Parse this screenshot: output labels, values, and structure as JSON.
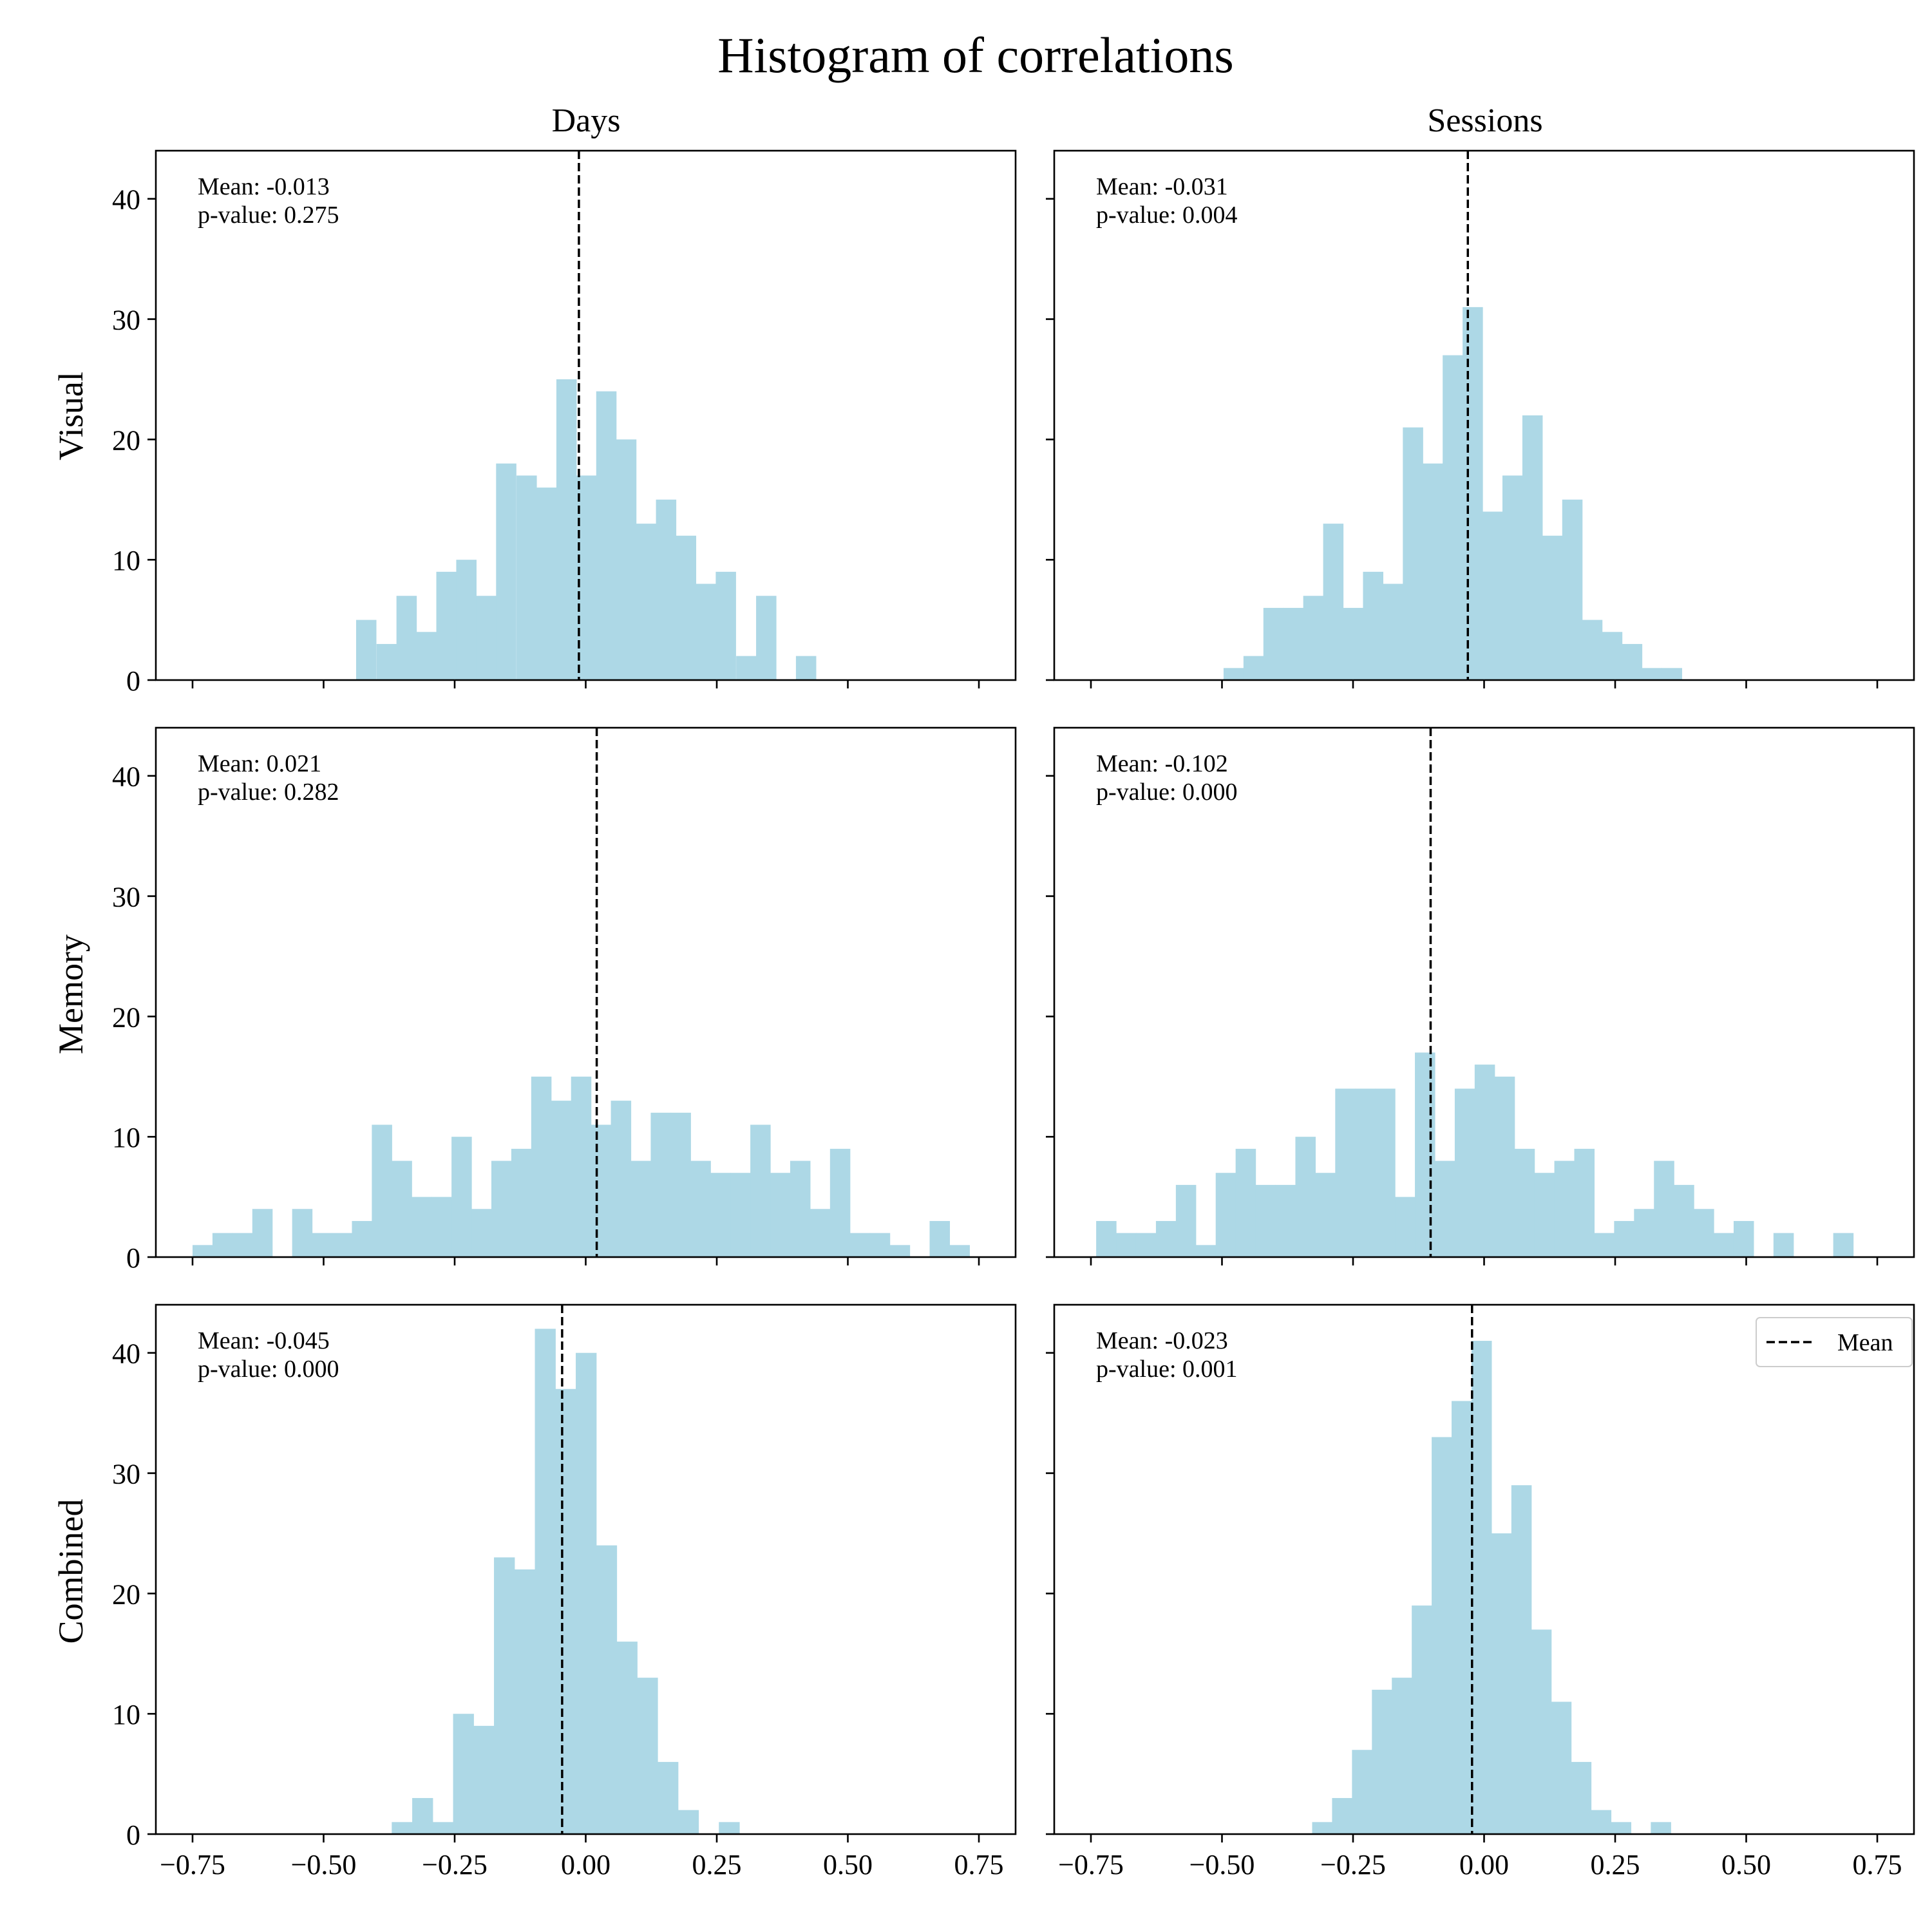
{
  "title": "Histogram of correlations",
  "column_titles": [
    "Days",
    "Sessions"
  ],
  "row_labels": [
    "Visual",
    "Memory",
    "Combined"
  ],
  "legend": {
    "label": "Mean",
    "location": "top-right",
    "panel": 5
  },
  "colors": {
    "bar": "#add8e6",
    "mean_line": "#000000",
    "axes": "#000000"
  },
  "chart_data": [
    {
      "type": "histogram",
      "row": "Visual",
      "column": "Days",
      "annotation": [
        "Mean: -0.013",
        "p-value: 0.275"
      ],
      "mean": -0.013,
      "bins": [
        [
          -0.438,
          5
        ],
        [
          -0.399,
          3
        ],
        [
          -0.361,
          7
        ],
        [
          -0.323,
          4
        ],
        [
          -0.285,
          9
        ],
        [
          -0.247,
          10
        ],
        [
          -0.209,
          7
        ],
        [
          -0.171,
          18
        ],
        [
          -0.132,
          17
        ],
        [
          -0.094,
          16
        ],
        [
          -0.056,
          25
        ],
        [
          -0.018,
          17
        ],
        [
          0.02,
          24
        ],
        [
          0.058,
          20
        ],
        [
          0.096,
          13
        ],
        [
          0.134,
          15
        ],
        [
          0.172,
          12
        ],
        [
          0.21,
          8
        ],
        [
          0.248,
          9
        ],
        [
          0.287,
          2
        ],
        [
          0.325,
          7
        ],
        [
          0.401,
          2
        ]
      ],
      "bin_width": 0.038,
      "xlim": [
        -0.82,
        0.82
      ],
      "ylim": [
        0,
        44
      ],
      "xticks": [
        "−0.75",
        "−0.50",
        "−0.25",
        "0.00",
        "0.25",
        "0.50",
        "0.75"
      ],
      "yticks": [
        "0",
        "10",
        "20",
        "30",
        "40"
      ],
      "show_xticklabels": false
    },
    {
      "type": "histogram",
      "row": "Visual",
      "column": "Sessions",
      "annotation": [
        "Mean: -0.031",
        "p-value: 0.004"
      ],
      "mean": -0.031,
      "bins": [
        [
          -0.497,
          1
        ],
        [
          -0.459,
          2
        ],
        [
          -0.421,
          6
        ],
        [
          -0.383,
          6
        ],
        [
          -0.345,
          7
        ],
        [
          -0.307,
          13
        ],
        [
          -0.269,
          6
        ],
        [
          -0.231,
          9
        ],
        [
          -0.193,
          8
        ],
        [
          -0.155,
          21
        ],
        [
          -0.117,
          18
        ],
        [
          -0.079,
          27
        ],
        [
          -0.041,
          31
        ],
        [
          -0.003,
          14
        ],
        [
          0.035,
          17
        ],
        [
          0.073,
          22
        ],
        [
          0.111,
          12
        ],
        [
          0.149,
          15
        ],
        [
          0.187,
          5
        ],
        [
          0.225,
          4
        ],
        [
          0.263,
          3
        ],
        [
          0.301,
          1
        ],
        [
          0.339,
          1
        ]
      ],
      "bin_width": 0.038,
      "xlim": [
        -0.82,
        0.82
      ],
      "ylim": [
        0,
        44
      ],
      "xticks": [
        "−0.75",
        "−0.50",
        "−0.25",
        "0.00",
        "0.25",
        "0.50",
        "0.75"
      ],
      "yticks": [
        "0",
        "10",
        "20",
        "30",
        "40"
      ],
      "show_xticklabels": false
    },
    {
      "type": "histogram",
      "row": "Memory",
      "column": "Days",
      "annotation": [
        "Mean: 0.021",
        "p-value: 0.282"
      ],
      "mean": 0.021,
      "bins": [
        [
          -0.75,
          1
        ],
        [
          -0.712,
          2
        ],
        [
          -0.674,
          2
        ],
        [
          -0.636,
          4
        ],
        [
          -0.56,
          4
        ],
        [
          -0.522,
          2
        ],
        [
          -0.484,
          2
        ],
        [
          -0.446,
          3
        ],
        [
          -0.408,
          11
        ],
        [
          -0.37,
          8
        ],
        [
          -0.332,
          5
        ],
        [
          -0.294,
          5
        ],
        [
          -0.256,
          10
        ],
        [
          -0.218,
          4
        ],
        [
          -0.18,
          8
        ],
        [
          -0.142,
          9
        ],
        [
          -0.104,
          15
        ],
        [
          -0.066,
          13
        ],
        [
          -0.028,
          15
        ],
        [
          0.01,
          11
        ],
        [
          0.048,
          13
        ],
        [
          0.086,
          8
        ],
        [
          0.124,
          12
        ],
        [
          0.162,
          12
        ],
        [
          0.2,
          8
        ],
        [
          0.238,
          7
        ],
        [
          0.276,
          7
        ],
        [
          0.314,
          11
        ],
        [
          0.352,
          7
        ],
        [
          0.39,
          8
        ],
        [
          0.428,
          4
        ],
        [
          0.466,
          9
        ],
        [
          0.504,
          2
        ],
        [
          0.542,
          2
        ],
        [
          0.58,
          1
        ],
        [
          0.656,
          3
        ],
        [
          0.694,
          1
        ]
      ],
      "bin_width": 0.038,
      "xlim": [
        -0.82,
        0.82
      ],
      "ylim": [
        0,
        44
      ],
      "xticks": [
        "−0.75",
        "−0.50",
        "−0.25",
        "0.00",
        "0.25",
        "0.50",
        "0.75"
      ],
      "yticks": [
        "0",
        "10",
        "20",
        "30",
        "40"
      ],
      "show_xticklabels": false
    },
    {
      "type": "histogram",
      "row": "Memory",
      "column": "Sessions",
      "annotation": [
        "Mean: -0.102",
        "p-value: 0.000"
      ],
      "mean": -0.102,
      "bins": [
        [
          -0.74,
          3
        ],
        [
          -0.702,
          2
        ],
        [
          -0.664,
          2
        ],
        [
          -0.626,
          3
        ],
        [
          -0.588,
          6
        ],
        [
          -0.55,
          1
        ],
        [
          -0.512,
          7
        ],
        [
          -0.474,
          9
        ],
        [
          -0.436,
          6
        ],
        [
          -0.398,
          6
        ],
        [
          -0.36,
          10
        ],
        [
          -0.322,
          7
        ],
        [
          -0.284,
          14
        ],
        [
          -0.246,
          14
        ],
        [
          -0.208,
          14
        ],
        [
          -0.17,
          5
        ],
        [
          -0.132,
          17
        ],
        [
          -0.094,
          8
        ],
        [
          -0.056,
          14
        ],
        [
          -0.018,
          16
        ],
        [
          0.02,
          15
        ],
        [
          0.058,
          9
        ],
        [
          0.096,
          7
        ],
        [
          0.134,
          8
        ],
        [
          0.172,
          9
        ],
        [
          0.21,
          2
        ],
        [
          0.248,
          3
        ],
        [
          0.286,
          4
        ],
        [
          0.324,
          8
        ],
        [
          0.362,
          6
        ],
        [
          0.4,
          4
        ],
        [
          0.438,
          2
        ],
        [
          0.476,
          3
        ],
        [
          0.552,
          2
        ],
        [
          0.666,
          2
        ]
      ],
      "bin_width": 0.038,
      "xlim": [
        -0.82,
        0.82
      ],
      "ylim": [
        0,
        44
      ],
      "xticks": [
        "−0.75",
        "−0.50",
        "−0.25",
        "0.00",
        "0.25",
        "0.50",
        "0.75"
      ],
      "yticks": [
        "0",
        "10",
        "20",
        "30",
        "40"
      ],
      "show_xticklabels": false
    },
    {
      "type": "histogram",
      "row": "Combined",
      "column": "Days",
      "annotation": [
        "Mean: -0.045",
        "p-value: 0.000"
      ],
      "mean": -0.045,
      "bins": [
        [
          -0.37,
          1
        ],
        [
          -0.331,
          3
        ],
        [
          -0.292,
          1
        ],
        [
          -0.253,
          10
        ],
        [
          -0.214,
          9
        ],
        [
          -0.175,
          23
        ],
        [
          -0.136,
          22
        ],
        [
          -0.097,
          42
        ],
        [
          -0.058,
          37
        ],
        [
          -0.019,
          40
        ],
        [
          0.02,
          24
        ],
        [
          0.059,
          16
        ],
        [
          0.098,
          13
        ],
        [
          0.137,
          6
        ],
        [
          0.176,
          2
        ],
        [
          0.254,
          1
        ]
      ],
      "bin_width": 0.039,
      "xlim": [
        -0.82,
        0.82
      ],
      "ylim": [
        0,
        44
      ],
      "xticks": [
        "−0.75",
        "−0.50",
        "−0.25",
        "0.00",
        "0.25",
        "0.50",
        "0.75"
      ],
      "yticks": [
        "0",
        "10",
        "20",
        "30",
        "40"
      ],
      "show_xticklabels": true
    },
    {
      "type": "histogram",
      "row": "Combined",
      "column": "Sessions",
      "annotation": [
        "Mean: -0.023",
        "p-value: 0.001"
      ],
      "mean": -0.023,
      "bins": [
        [
          -0.328,
          1
        ],
        [
          -0.29,
          3
        ],
        [
          -0.252,
          7
        ],
        [
          -0.214,
          12
        ],
        [
          -0.176,
          13
        ],
        [
          -0.138,
          19
        ],
        [
          -0.1,
          33
        ],
        [
          -0.062,
          36
        ],
        [
          -0.024,
          41
        ],
        [
          0.014,
          25
        ],
        [
          0.052,
          29
        ],
        [
          0.09,
          17
        ],
        [
          0.128,
          11
        ],
        [
          0.166,
          6
        ],
        [
          0.204,
          2
        ],
        [
          0.242,
          1
        ],
        [
          0.318,
          1
        ]
      ],
      "bin_width": 0.038,
      "xlim": [
        -0.82,
        0.82
      ],
      "ylim": [
        0,
        44
      ],
      "xticks": [
        "−0.75",
        "−0.50",
        "−0.25",
        "0.00",
        "0.25",
        "0.50",
        "0.75"
      ],
      "yticks": [
        "0",
        "10",
        "20",
        "30",
        "40"
      ],
      "show_xticklabels": true
    }
  ]
}
